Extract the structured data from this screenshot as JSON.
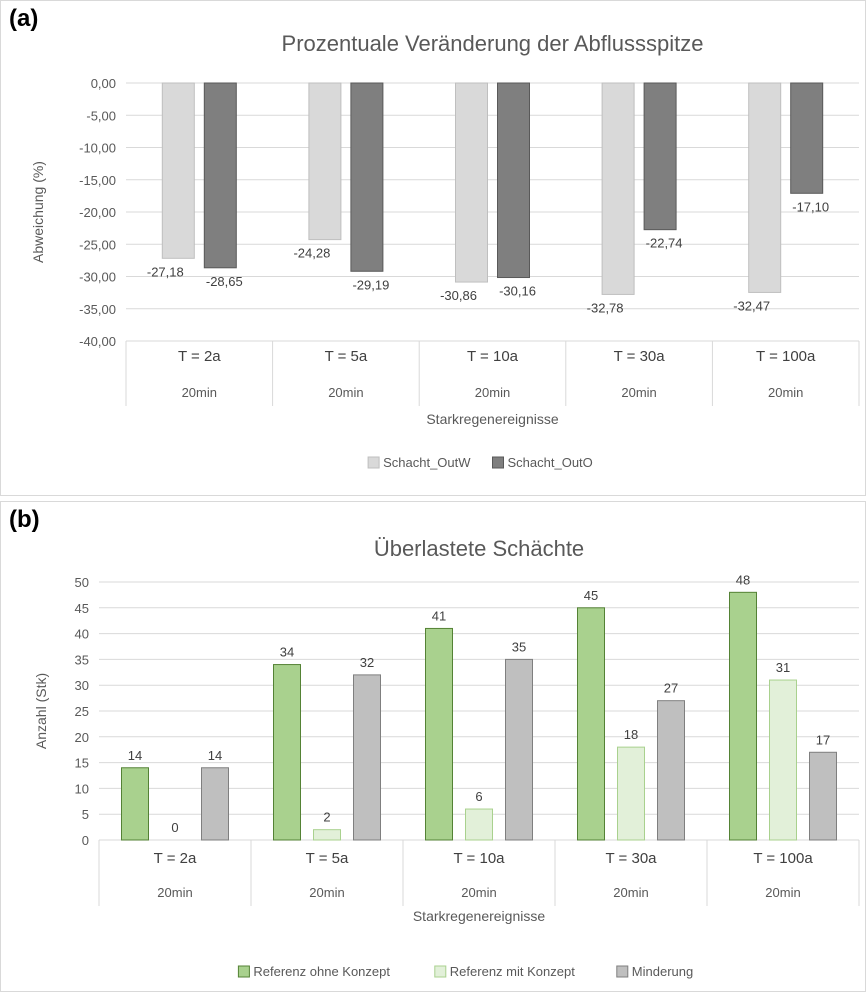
{
  "chart_data": [
    {
      "panel_label": "(a)",
      "type": "bar",
      "title": "Prozentuale Veränderung der Abflussspitze",
      "xlabel": "Starkregenereignisse",
      "ylabel": "Abweichung (%)",
      "ylim": [
        -40,
        0
      ],
      "yticks": [
        "0,00",
        "-5,00",
        "-10,00",
        "-15,00",
        "-20,00",
        "-25,00",
        "-30,00",
        "-35,00",
        "-40,00"
      ],
      "categories": [
        "T = 2a",
        "T = 5a",
        "T = 10a",
        "T = 30a",
        "T = 100a"
      ],
      "subcategories": [
        "20min",
        "20min",
        "20min",
        "20min",
        "20min"
      ],
      "grid": true,
      "legend_position": "bottom",
      "series": [
        {
          "name": "Schacht_OutW",
          "values": [
            -27.18,
            -24.28,
            -30.86,
            -32.78,
            -32.47
          ],
          "labels": [
            "-27,18",
            "-24,28",
            "-30,86",
            "-32,78",
            "-32,47"
          ],
          "color": "#d9d9d9"
        },
        {
          "name": "Schacht_OutO",
          "values": [
            -28.65,
            -29.19,
            -30.16,
            -22.74,
            -17.1
          ],
          "labels": [
            "-28,65",
            "-29,19",
            "-30,16",
            "-22,74",
            "-17,10"
          ],
          "color": "#7f7f7f"
        }
      ]
    },
    {
      "panel_label": "(b)",
      "type": "bar",
      "title": "Überlastete Schächte",
      "xlabel": "Starkregenereignisse",
      "ylabel": "Anzahl (Stk)",
      "ylim": [
        0,
        50
      ],
      "yticks": [
        "50",
        "45",
        "40",
        "35",
        "30",
        "25",
        "20",
        "15",
        "10",
        "5",
        "0"
      ],
      "categories": [
        "T = 2a",
        "T = 5a",
        "T = 10a",
        "T = 30a",
        "T = 100a"
      ],
      "subcategories": [
        "20min",
        "20min",
        "20min",
        "20min",
        "20min"
      ],
      "grid": true,
      "legend_position": "bottom",
      "series": [
        {
          "name": "Referenz  ohne Konzept",
          "values": [
            14,
            34,
            41,
            45,
            48
          ],
          "labels": [
            "14",
            "34",
            "41",
            "45",
            "48"
          ],
          "color": "#a9d18e"
        },
        {
          "name": "Referenz mit Konzept",
          "values": [
            0,
            2,
            6,
            18,
            31
          ],
          "labels": [
            "0",
            "2",
            "6",
            "18",
            "31"
          ],
          "color": "#e2f0d9"
        },
        {
          "name": "Minderung",
          "values": [
            14,
            32,
            35,
            27,
            17
          ],
          "labels": [
            "14",
            "32",
            "35",
            "27",
            "17"
          ],
          "color": "#bfbfbf"
        }
      ]
    }
  ]
}
